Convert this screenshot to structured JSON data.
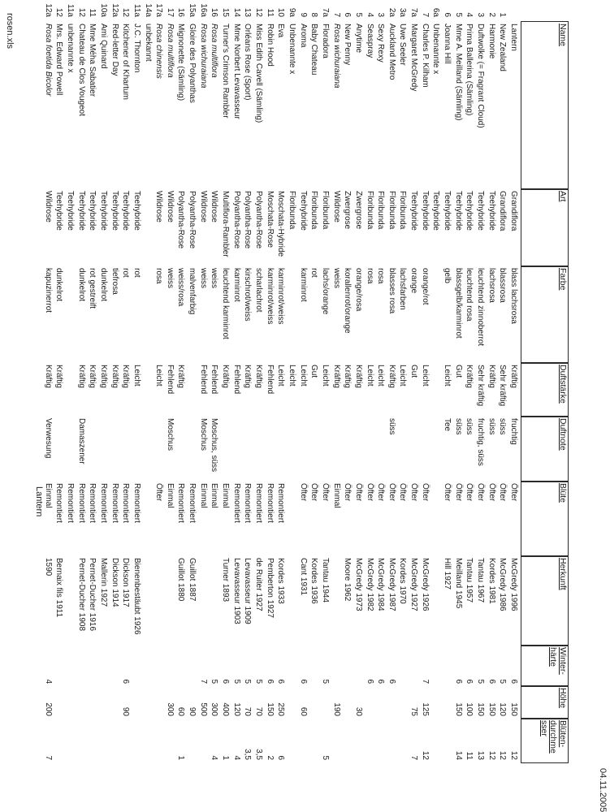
{
  "page": {
    "footer_left": "rosen.xls",
    "footer_center": "Lantern",
    "header_right": "04.11.2005"
  },
  "table": {
    "columns": [
      {
        "key": "nr",
        "label": [
          ""
        ]
      },
      {
        "key": "name",
        "label": [
          "Name"
        ]
      },
      {
        "key": "art",
        "label": [
          "Art"
        ]
      },
      {
        "key": "farbe",
        "label": [
          "Farbe"
        ]
      },
      {
        "key": "ds",
        "label": [
          "Duftstärke"
        ]
      },
      {
        "key": "dn",
        "label": [
          "Duftnote"
        ]
      },
      {
        "key": "bl",
        "label": [
          "Blüte"
        ]
      },
      {
        "key": "hk",
        "label": [
          "Herkunft"
        ]
      },
      {
        "key": "wh",
        "label": [
          "Winter-",
          "härte"
        ]
      },
      {
        "key": "h",
        "label": [
          "Höhe"
        ]
      },
      {
        "key": "bd",
        "label": [
          "Blüten-",
          "durchme",
          "sser"
        ]
      }
    ],
    "rows": [
      {
        "nr": "",
        "name": "Lantern",
        "it": false,
        "art": "Grandiflora",
        "farbe": "blass lachsrosa",
        "ds": "Kräftig",
        "dn": "fruchtig",
        "bl": "Öfter",
        "hk": "McGredy 1996",
        "wh": "6",
        "h": "150",
        "bd": "12"
      },
      {
        "nr": "1",
        "name": "New Zealand",
        "it": false,
        "art": "Grandiflora",
        "farbe": "blassrosa",
        "ds": "Sehr kräftig",
        "dn": "süss",
        "bl": "Öfter",
        "hk": "McGredy 1986",
        "wh": "5",
        "h": "120",
        "bd": "12"
      },
      {
        "nr": "2",
        "name": "Harmonie",
        "it": false,
        "art": "Teehybride",
        "farbe": "lachsrosa",
        "ds": "Kräftig",
        "dn": "süss",
        "bl": "Öfter",
        "hk": "Kordes 1981",
        "wh": "6",
        "h": "150",
        "bd": "12"
      },
      {
        "nr": "3",
        "name": "Duftwolke (= Fragrant Cloud)",
        "it": false,
        "art": "Teehybride",
        "farbe": "leuchtend zinnoberrot",
        "ds": "Sehr kräftig",
        "dn": "fruchtig, süss",
        "bl": "Öfter",
        "hk": "Tantau 1967",
        "wh": "5",
        "h": "150",
        "bd": "13"
      },
      {
        "nr": "4",
        "name": "Prima Ballerina (Sämling)",
        "it": false,
        "art": "Teehybride",
        "farbe": "leuchtend rosa",
        "ds": "Kräftig",
        "dn": "süss",
        "bl": "Öfter",
        "hk": "Tantau 1957",
        "wh": "6",
        "h": "100",
        "bd": "11"
      },
      {
        "nr": "5",
        "name": "Mme A. Meilland (Sämling)",
        "it": false,
        "art": "Teehybride",
        "farbe": "blassgelb/karminrot",
        "ds": "Gut",
        "dn": "süss",
        "bl": "Öfter",
        "hk": "Meilland 1945",
        "wh": "6",
        "h": "150",
        "bd": "14"
      },
      {
        "nr": "6",
        "name": "Joanna Hill",
        "it": false,
        "art": "Teehybride",
        "farbe": "gelb",
        "ds": "Leicht",
        "dn": "Tee",
        "bl": "Öfter",
        "hk": "Hill 1927",
        "wh": "",
        "h": "",
        "bd": ""
      },
      {
        "nr": "6a",
        "name": "Unbenannte x",
        "it": false,
        "art": "Teehybride",
        "farbe": "",
        "ds": "",
        "dn": "",
        "bl": "",
        "hk": "",
        "wh": "",
        "h": "",
        "bd": ""
      },
      {
        "nr": "7",
        "name": "Charles P. Kilham",
        "it": false,
        "art": "Teehybride",
        "farbe": "orange/rot",
        "ds": "Leicht",
        "dn": "",
        "bl": "Öfter",
        "hk": "McGredy 1926",
        "wh": "7",
        "h": "125",
        "bd": "12"
      },
      {
        "nr": "7a",
        "name": "Margaret McGredy",
        "it": false,
        "art": "Teehybride",
        "farbe": "orange",
        "ds": "Gut",
        "dn": "",
        "bl": "Öfter",
        "hk": "McGredy 1927",
        "wh": "",
        "h": "75",
        "bd": "7"
      },
      {
        "nr": "3a",
        "name": "Uwe Seeler",
        "it": false,
        "art": "Floribunda",
        "farbe": "lachsfarben",
        "ds": "Leicht",
        "dn": "",
        "bl": "Öfter",
        "hk": "Kordes 1970",
        "wh": "",
        "h": "",
        "bd": ""
      },
      {
        "nr": "2a",
        "name": "Auckland Metro",
        "it": false,
        "art": "Floribunda",
        "farbe": "blasses rosa",
        "ds": "Kräftig",
        "dn": "süss",
        "bl": "Öfter",
        "hk": "McGredy 1987",
        "wh": "6",
        "h": "",
        "bd": ""
      },
      {
        "nr": "3",
        "name": "Sexy Rexy",
        "it": false,
        "art": "Floribunda",
        "farbe": "rosa",
        "ds": "Leicht",
        "dn": "",
        "bl": "Öfter",
        "hk": "McGredy 1984",
        "wh": "6",
        "h": "",
        "bd": ""
      },
      {
        "nr": "4",
        "name": "Seaspray",
        "it": false,
        "art": "Floribunda",
        "farbe": "rosa",
        "ds": "Leicht",
        "dn": "",
        "bl": "Öfter",
        "hk": "McGredy 1982",
        "wh": "6",
        "h": "",
        "bd": ""
      },
      {
        "nr": "5",
        "name": "Anytime",
        "it": false,
        "art": "Zwergrose",
        "farbe": "orange/rosa",
        "ds": "Kräftig",
        "dn": "",
        "bl": "Öfter",
        "hk": "McGredy 1973",
        "wh": "",
        "h": "30",
        "bd": ""
      },
      {
        "nr": "6",
        "name": "New Penny",
        "it": false,
        "art": "Zwergrose",
        "farbe": "korallenrot/orange",
        "ds": "Kräftig",
        "dn": "",
        "bl": "Öfter",
        "hk": "Moore 1962",
        "wh": "",
        "h": "",
        "bd": ""
      },
      {
        "nr": "7",
        "name": "Rosa wichuraiana",
        "it": true,
        "art": "Wildrose",
        "farbe": "weiss",
        "ds": "Kräftig",
        "dn": "",
        "bl": "Einmal",
        "hk": "",
        "wh": "",
        "h": "190",
        "bd": ""
      },
      {
        "nr": "7a",
        "name": "Floradora",
        "it": false,
        "art": "Floribunda",
        "farbe": "lachs/orange",
        "ds": "Leicht",
        "dn": "",
        "bl": "Öfter",
        "hk": "Tantau 1944",
        "wh": "5",
        "h": "",
        "bd": "5"
      },
      {
        "nr": "8",
        "name": "Baby Chateau",
        "it": false,
        "art": "Floribunda",
        "farbe": "rot",
        "ds": "Gut",
        "dn": "",
        "bl": "Öfter",
        "hk": "Kordes 1936",
        "wh": "",
        "h": "",
        "bd": ""
      },
      {
        "nr": "9",
        "name": "Aroma",
        "it": false,
        "art": "Teehybride",
        "farbe": "karminrot",
        "ds": "Leicht",
        "dn": "",
        "bl": "Öfter",
        "hk": "Cant 1931",
        "wh": "6",
        "h": "60",
        "bd": ""
      },
      {
        "nr": "9a",
        "name": "Unbenannte x",
        "it": false,
        "art": "Floribunda",
        "farbe": "",
        "ds": "Leicht",
        "dn": "",
        "bl": "",
        "hk": "",
        "wh": "",
        "h": "",
        "bd": ""
      },
      {
        "nr": "10",
        "name": "Eva",
        "it": false,
        "art": "Moschata-Hybride",
        "farbe": "karminrot/weiss",
        "ds": "Leicht",
        "dn": "",
        "bl": "Remontiert",
        "hk": "Kordes 1933",
        "wh": "6",
        "h": "250",
        "bd": "6"
      },
      {
        "nr": "11",
        "name": "Robin Hood",
        "it": false,
        "art": "Moschata-Rose",
        "farbe": "karminrot/weiss",
        "ds": "Fehlend",
        "dn": "",
        "bl": "Remontiert",
        "hk": "Pemberton 1927",
        "wh": "6",
        "h": "150",
        "bd": "2"
      },
      {
        "nr": "12",
        "name": "Miss Edith Cavell (Sämling)",
        "it": false,
        "art": "Polyantha-Rose",
        "farbe": "scharlachrot",
        "ds": "Kräftig",
        "dn": "",
        "bl": "Remontiert",
        "hk": "de Ruiter 1927",
        "wh": "5",
        "h": "70",
        "bd": "3,5"
      },
      {
        "nr": "13",
        "name": "Orléans Rose (Sport)",
        "it": false,
        "art": "Polyantha-Rose",
        "farbe": "kirschrot/weiss",
        "ds": "Kräftig",
        "dn": "",
        "bl": "Remontiert",
        "hk": "Levavasseur 1909",
        "wh": "5",
        "h": "70",
        "bd": "3,5"
      },
      {
        "nr": "14",
        "name": "Mme Norbert Levavasseur",
        "it": false,
        "art": "Polyantha-Rose",
        "farbe": "karminrot",
        "ds": "Fehlend",
        "dn": "",
        "bl": "Remontiert",
        "hk": "Levavasseur 1903",
        "wh": "5",
        "h": "120",
        "bd": "4"
      },
      {
        "nr": "15",
        "name": "Turner's Crimson Rambler",
        "it": false,
        "art": "Multiflora-Rambler",
        "farbe": "leuchtend karminrot",
        "ds": "Kräftig",
        "dn": "",
        "bl": "Einmal",
        "hk": "Turner 1893",
        "wh": "6",
        "h": "400",
        "bd": "1"
      },
      {
        "nr": "16",
        "name": "Rosa multiflora",
        "it": true,
        "art": "Wildrose",
        "farbe": "weiss",
        "ds": "Fehlend",
        "dn": "Moschus, süss",
        "bl": "Einmal",
        "hk": "",
        "wh": "5",
        "h": "300",
        "bd": "4"
      },
      {
        "nr": "16a",
        "name": "Rosa wichuraiana",
        "it": true,
        "art": "Wildrose",
        "farbe": "weiss",
        "ds": "Fehlend",
        "dn": "Moschus",
        "bl": "Einmal",
        "hk": "",
        "wh": "7",
        "h": "500",
        "bd": ""
      },
      {
        "nr": "15a",
        "name": "Gloire des Polyanthas",
        "it": false,
        "art": "Polyantha-Rose",
        "farbe": "malvenfarbig",
        "ds": "",
        "dn": "",
        "bl": "Remontiert",
        "hk": "Guillot 1887",
        "wh": "",
        "h": "90",
        "bd": ""
      },
      {
        "nr": "16",
        "name": "Mignonette (Sämling)",
        "it": false,
        "art": "Polyantha-Rose",
        "farbe": "weiss/rosa",
        "ds": "Kräftig",
        "dn": "",
        "bl": "Remontiert",
        "hk": "Guillot 1880",
        "wh": "",
        "h": "60",
        "bd": "1"
      },
      {
        "nr": "17",
        "name": "Rosa multiflora",
        "it": true,
        "art": "Wildrose",
        "farbe": "weiss",
        "ds": "Fehlend",
        "dn": "Moschus",
        "bl": "Einmal",
        "hk": "",
        "wh": "",
        "h": "300",
        "bd": ""
      },
      {
        "nr": "17a",
        "name": "Rosa chinensis",
        "it": true,
        "art": "Wildrose",
        "farbe": "rosa",
        "ds": "Leicht",
        "dn": "",
        "bl": "Öfter",
        "hk": "",
        "wh": "",
        "h": "",
        "bd": ""
      },
      {
        "nr": "14a",
        "name": "unbekannt",
        "it": false,
        "art": "",
        "farbe": "",
        "ds": "",
        "dn": "",
        "bl": "",
        "hk": "",
        "wh": "",
        "h": "",
        "bd": ""
      },
      {
        "nr": "11a",
        "name": "J.C. Thornton",
        "it": false,
        "art": "Teehybride",
        "farbe": "rot",
        "ds": "Leicht",
        "dn": "",
        "bl": "Remontiert",
        "hk": "Bienenbestäubt 1926",
        "wh": "",
        "h": "",
        "bd": ""
      },
      {
        "nr": "12",
        "name": "Kitchener of Khartum",
        "it": false,
        "art": "Teehybride",
        "farbe": "rot",
        "ds": "Kräftig",
        "dn": "",
        "bl": "Remontiert",
        "hk": "Dickson 1917",
        "wh": "6",
        "h": "90",
        "bd": ""
      },
      {
        "nr": "12a",
        "name": "Red-letter Day",
        "it": false,
        "art": "Teehybride",
        "farbe": "tiefrosa",
        "ds": "Kräftig",
        "dn": "",
        "bl": "Remontiert",
        "hk": "Dickson 1914",
        "wh": "",
        "h": "",
        "bd": ""
      },
      {
        "nr": "10a",
        "name": "Ami Quinard",
        "it": false,
        "art": "Teehybride",
        "farbe": "dunkelrot",
        "ds": "Kräftig",
        "dn": "",
        "bl": "Remontiert",
        "hk": "Mallerin 1927",
        "wh": "",
        "h": "",
        "bd": ""
      },
      {
        "nr": "11",
        "name": "Mme Méha Sabatier",
        "it": false,
        "art": "Teehybride",
        "farbe": "rot gestreift",
        "ds": "Kräftig",
        "dn": "",
        "bl": "Remontiert",
        "hk": "Pernet-Ducher 1916",
        "wh": "",
        "h": "",
        "bd": ""
      },
      {
        "nr": "12",
        "name": "Chateau de Clos Vougeot",
        "it": false,
        "art": "Teehybride",
        "farbe": "dunkelrot",
        "ds": "Kräftig",
        "dn": "Damaszener",
        "bl": "Remontiert",
        "hk": "Pernet-Ducher 1908",
        "wh": "",
        "h": "",
        "bd": ""
      },
      {
        "nr": "11a",
        "name": "unbenannte x",
        "it": false,
        "art": "Teehybride",
        "farbe": "",
        "ds": "",
        "dn": "",
        "bl": "Remontiert",
        "hk": "",
        "wh": "",
        "h": "",
        "bd": ""
      },
      {
        "nr": "12",
        "name": "Mrs. Edward Powell",
        "it": false,
        "art": "Teehybride",
        "farbe": "dunkelrot",
        "ds": "Kräftig",
        "dn": "",
        "bl": "Remontiert",
        "hk": "Bernaix fils 1911",
        "wh": "",
        "h": "",
        "bd": ""
      },
      {
        "nr": "12a",
        "name": "Rosa foetida Bicolor",
        "it": true,
        "art": "Wildrose",
        "farbe": "kapuzinerrot",
        "ds": "Kräftig",
        "dn": "Verwesung",
        "bl": "Einmal",
        "hk": "1590",
        "wh": "4",
        "h": "200",
        "bd": "7"
      }
    ]
  }
}
